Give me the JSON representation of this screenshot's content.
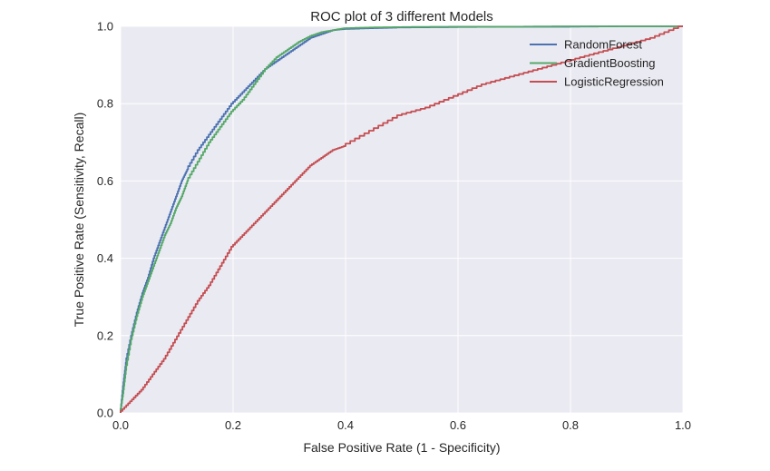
{
  "chart_data": {
    "type": "line",
    "title": "ROC plot of 3 different Models",
    "xlabel": "False Positive Rate (1 - Specificity)",
    "ylabel": "True Positive Rate (Sensitivity, Recall)",
    "xlim": [
      0.0,
      1.0
    ],
    "ylim": [
      0.0,
      1.0
    ],
    "xticks": [
      "0.0",
      "0.2",
      "0.4",
      "0.6",
      "0.8",
      "1.0"
    ],
    "yticks": [
      "0.0",
      "0.2",
      "0.4",
      "0.6",
      "0.8",
      "1.0"
    ],
    "grid": true,
    "legend_position": "top-right",
    "series": [
      {
        "name": "RandomForest",
        "color": "#4c72b0",
        "x": [
          0.0,
          0.005,
          0.01,
          0.02,
          0.03,
          0.04,
          0.05,
          0.06,
          0.07,
          0.08,
          0.09,
          0.1,
          0.11,
          0.12,
          0.14,
          0.16,
          0.18,
          0.2,
          0.22,
          0.24,
          0.26,
          0.28,
          0.3,
          0.32,
          0.34,
          0.36,
          0.38,
          0.4,
          0.45,
          0.5,
          0.6,
          0.7,
          0.8,
          0.9,
          1.0
        ],
        "y": [
          0.0,
          0.07,
          0.13,
          0.2,
          0.26,
          0.31,
          0.35,
          0.4,
          0.44,
          0.48,
          0.52,
          0.56,
          0.6,
          0.63,
          0.68,
          0.72,
          0.76,
          0.8,
          0.83,
          0.86,
          0.89,
          0.91,
          0.93,
          0.95,
          0.97,
          0.98,
          0.99,
          0.993,
          0.995,
          0.997,
          0.998,
          0.999,
          0.999,
          1.0,
          1.0
        ]
      },
      {
        "name": "GradientBoosting",
        "color": "#55a868",
        "x": [
          0.0,
          0.005,
          0.01,
          0.02,
          0.03,
          0.04,
          0.05,
          0.06,
          0.07,
          0.08,
          0.09,
          0.1,
          0.11,
          0.12,
          0.14,
          0.16,
          0.18,
          0.2,
          0.22,
          0.24,
          0.26,
          0.28,
          0.3,
          0.32,
          0.34,
          0.36,
          0.38,
          0.4,
          0.45,
          0.5,
          0.6,
          0.7,
          0.8,
          0.9,
          1.0
        ],
        "y": [
          0.0,
          0.05,
          0.11,
          0.19,
          0.25,
          0.3,
          0.34,
          0.38,
          0.42,
          0.46,
          0.49,
          0.53,
          0.56,
          0.6,
          0.65,
          0.7,
          0.74,
          0.78,
          0.81,
          0.85,
          0.89,
          0.92,
          0.94,
          0.96,
          0.975,
          0.985,
          0.99,
          0.995,
          0.997,
          0.998,
          0.999,
          0.999,
          1.0,
          1.0,
          1.0
        ]
      },
      {
        "name": "LogisticRegression",
        "color": "#c44e52",
        "x": [
          0.0,
          0.02,
          0.04,
          0.06,
          0.08,
          0.1,
          0.12,
          0.14,
          0.16,
          0.18,
          0.2,
          0.22,
          0.24,
          0.26,
          0.28,
          0.3,
          0.32,
          0.34,
          0.36,
          0.38,
          0.4,
          0.45,
          0.5,
          0.55,
          0.6,
          0.65,
          0.7,
          0.75,
          0.8,
          0.85,
          0.9,
          0.95,
          1.0
        ],
        "y": [
          0.0,
          0.03,
          0.06,
          0.1,
          0.14,
          0.19,
          0.24,
          0.29,
          0.33,
          0.38,
          0.43,
          0.46,
          0.49,
          0.52,
          0.55,
          0.58,
          0.61,
          0.64,
          0.66,
          0.68,
          0.69,
          0.73,
          0.77,
          0.79,
          0.82,
          0.85,
          0.87,
          0.89,
          0.91,
          0.93,
          0.95,
          0.97,
          1.0
        ]
      }
    ]
  }
}
